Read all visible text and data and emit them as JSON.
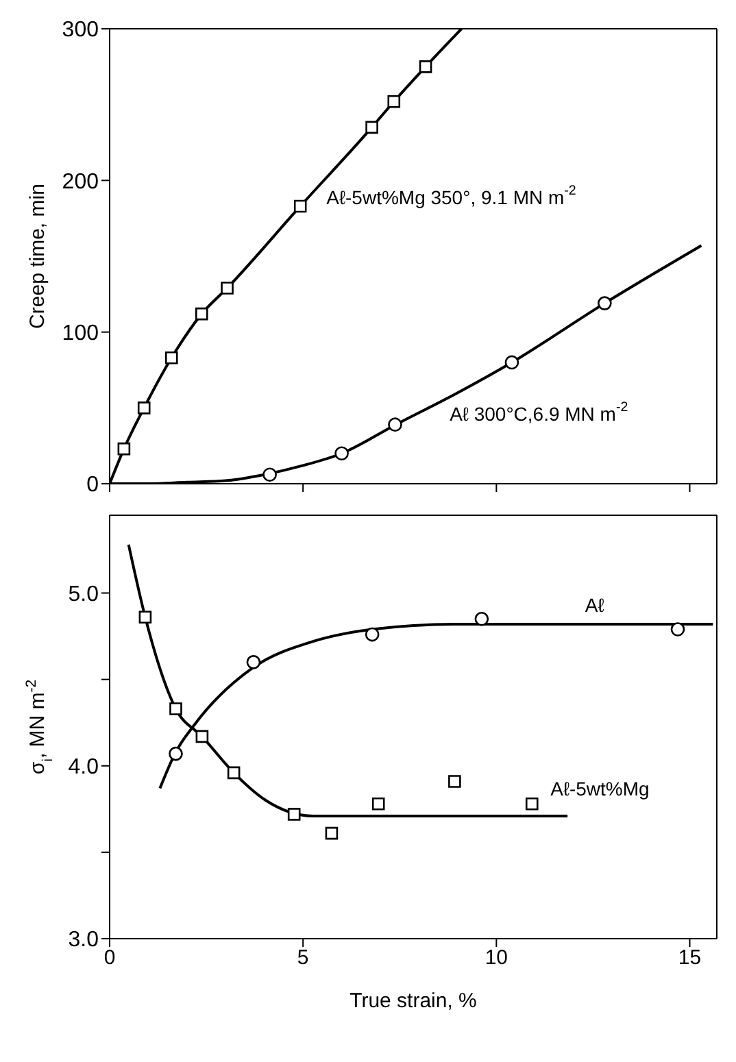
{
  "chart_data": [
    {
      "type": "scatter",
      "ylabel": "Creep time, min",
      "xlim": [
        0,
        15.7
      ],
      "xticks": [
        0,
        5,
        10,
        15
      ],
      "ylim": [
        0,
        300
      ],
      "yticks": [
        0,
        100,
        200,
        300
      ],
      "tick_labels": "y",
      "series": [
        {
          "type": "scatter",
          "marker": "square",
          "color": "#000000",
          "x": [
            0.37,
            0.89,
            1.6,
            2.38,
            3.04,
            4.93,
            6.78,
            7.35,
            8.17
          ],
          "values": [
            23,
            50,
            83,
            112,
            129,
            183,
            235,
            252,
            275
          ]
        },
        {
          "type": "line",
          "marker": "none",
          "line_style": "solid",
          "color": "#000000",
          "x": [
            0,
            0.37,
            0.89,
            1.6,
            2.38,
            3.04,
            4.93,
            6.78,
            7.35,
            8.17,
            9.1
          ],
          "values": [
            0,
            23,
            50,
            83,
            112,
            129,
            183,
            235,
            252,
            275,
            300
          ]
        },
        {
          "type": "scatter",
          "marker": "circle",
          "color": "#000000",
          "x": [
            4.14,
            6.0,
            7.38,
            10.4,
            12.8
          ],
          "values": [
            6,
            20,
            39,
            80,
            119
          ]
        },
        {
          "type": "line",
          "marker": "none",
          "line_style": "solid",
          "color": "#000000",
          "x": [
            0,
            1,
            2,
            3,
            4,
            5,
            6,
            7.4,
            9,
            10.4,
            12.8,
            15.3
          ],
          "values": [
            0,
            0,
            1,
            2,
            6,
            12,
            20,
            39,
            60,
            80,
            119,
            157
          ]
        }
      ],
      "annotations": [
        "Aℓ-5wt%Mg 350°, 9.1 MN m$^{-2}$",
        "Aℓ 300°C,6.9 MN m$^{-2}$"
      ]
    },
    {
      "type": "scatter",
      "xlabel": "True strain, %",
      "ylabel": "σ$_{i}$, MN m$^{-2}$",
      "xlim": [
        0,
        15.7
      ],
      "xticks": [
        0,
        5,
        10,
        15
      ],
      "ylim": [
        3.0,
        5.45
      ],
      "yticks": [
        {
          "value": 3,
          "label": "3.0"
        },
        {
          "value": 3.5,
          "label": null
        },
        {
          "value": 4,
          "label": "4.0"
        },
        {
          "value": 4.5,
          "label": null
        },
        {
          "value": 5,
          "label": "5.0"
        }
      ],
      "series": [
        {
          "type": "scatter",
          "marker": "square",
          "color": "#000000",
          "x": [
            0.92,
            1.71,
            2.39,
            3.21,
            4.77,
            5.74,
            6.95,
            8.92,
            10.92
          ],
          "values": [
            4.86,
            4.33,
            4.17,
            3.96,
            3.72,
            3.61,
            3.78,
            3.91,
            3.78
          ]
        },
        {
          "type": "line",
          "marker": "none",
          "line_style": "solid",
          "color": "#000000",
          "x": [
            0.49,
            0.92,
            1.71,
            2.39,
            3.21,
            4.04,
            5.26,
            11.84
          ],
          "values": [
            5.28,
            4.86,
            4.33,
            4.17,
            3.96,
            3.8,
            3.71,
            3.71
          ]
        },
        {
          "type": "scatter",
          "marker": "circle",
          "color": "#000000",
          "x": [
            1.71,
            3.72,
            6.79,
            9.62,
            14.69
          ],
          "values": [
            4.07,
            4.6,
            4.76,
            4.85,
            4.79
          ]
        },
        {
          "type": "line",
          "marker": "none",
          "line_style": "solid",
          "color": "#000000",
          "x": [
            1.3,
            1.71,
            2.2,
            3.72,
            5.26,
            6.79,
            8.93,
            10.16,
            15.6
          ],
          "values": [
            3.87,
            4.08,
            4.24,
            4.57,
            4.72,
            4.79,
            4.82,
            4.82,
            4.82
          ]
        }
      ],
      "annotations": [
        "Aℓ",
        "Aℓ-5wt%Mg"
      ]
    }
  ]
}
